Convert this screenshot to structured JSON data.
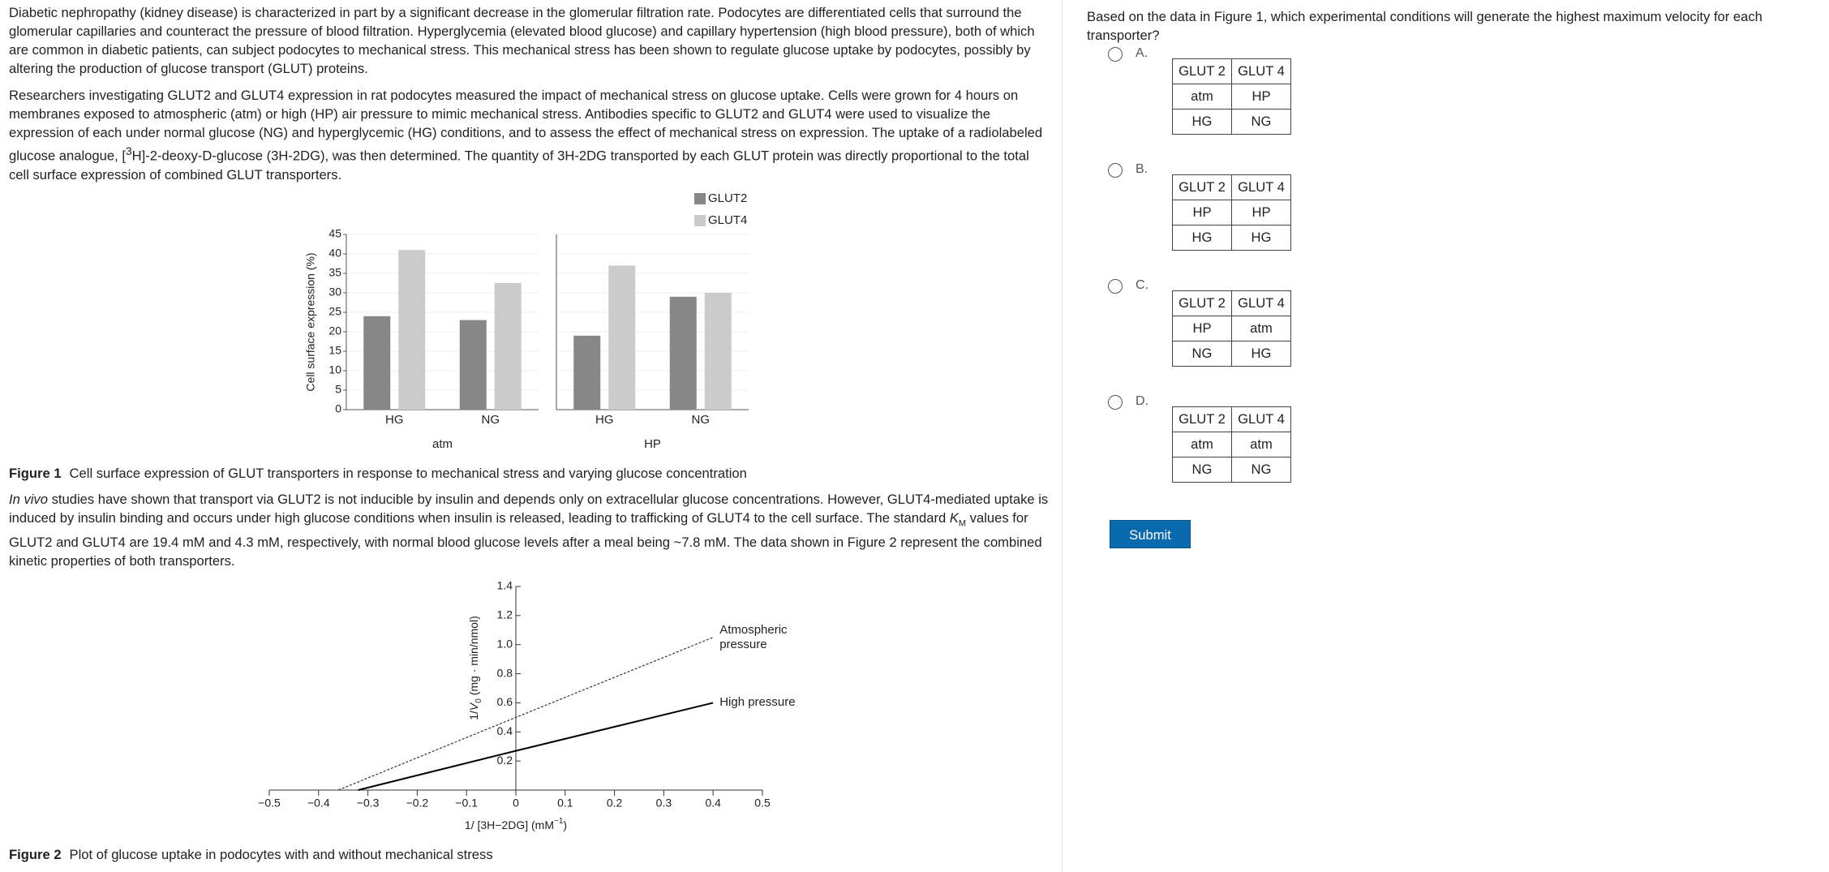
{
  "passage": {
    "paragraphs": [
      [
        "Diabetic nephropathy (kidney disease) is characterized in part by a significant decrease in the glomerular filtration rate.  Podocytes are differentiated cells that surround the glomerular capillaries and counteract the pressure of blood filtration.  Hyperglycemia (elevated blood glucose) and capillary hypertension (high blood pressure), both of which are common in diabetic patients, can subject podocytes to mechanical stress.  This mechanical stress has been shown to regulate glucose uptake by podocytes, possibly by altering the production of glucose transport (GLUT) proteins."
      ],
      [
        "Researchers investigating GLUT2 and GLUT4 expression in rat podocytes measured the impact of mechanical stress on glucose uptake.  Cells were grown for 4 hours on membranes exposed to atmospheric (atm) or high (HP) air pressure to mimic mechanical stress.  Antibodies specific to GLUT2 and GLUT4 were used to visualize the expression of each under normal glucose (NG) and hyperglycemic (HG) conditions, and to assess the effect of mechanical stress on expression.  The uptake of a radiolabeled glucose analogue, [",
        "3",
        "H]-2-deoxy-D-glucose (3H-2DG), was then determined.  The quantity of 3H-2DG transported by each GLUT protein was directly proportional to the total cell surface expression of combined GLUT transporters."
      ],
      [
        "In vivo",
        " studies have shown that transport via GLUT2 is not inducible by insulin and depends only on extracellular glucose concentrations.  However, GLUT4-mediated uptake is induced by insulin binding and occurs under high glucose conditions when insulin is released, leading to trafficking of GLUT4 to the cell surface.  The standard ",
        "K",
        "M",
        " values for GLUT2 and GLUT4 are 19.4 mM and 4.3 mM, respectively, with normal blood glucose levels after a meal being ~7.8 mM.  The data shown in Figure 2 represent the combined kinetic properties of both transporters."
      ]
    ]
  },
  "chart_data": [
    {
      "type": "bar",
      "categories": [
        "HG",
        "NG",
        "HG",
        "NG"
      ],
      "groups": [
        "atm",
        "HP"
      ],
      "series": [
        {
          "name": "GLUT2",
          "color": "#878787",
          "values": [
            24,
            23,
            19,
            29
          ]
        },
        {
          "name": "GLUT4",
          "color": "#cbcbcb",
          "values": [
            41,
            32.5,
            37,
            30
          ]
        }
      ],
      "ylim": [
        0,
        45
      ],
      "yticks": [
        0,
        5,
        10,
        15,
        20,
        25,
        30,
        35,
        40,
        45
      ],
      "y_label": "Cell surface expression (%)",
      "grid": true,
      "caption": {
        "label": "Figure 1",
        "text": "Cell surface expression of GLUT transporters in response to mechanical stress and varying glucose concentration"
      }
    },
    {
      "type": "line",
      "series": [
        {
          "name": "Atmospheric pressure",
          "color": "#333333",
          "dashed": true,
          "x": [
            -0.36,
            0,
            0.4
          ],
          "values": [
            0,
            0.5,
            1.05
          ]
        },
        {
          "name": "High pressure",
          "color": "#000000",
          "dashed": false,
          "x": [
            -0.32,
            0,
            0.4
          ],
          "values": [
            0,
            0.27,
            0.6
          ]
        }
      ],
      "xlim": [
        -0.5,
        0.5
      ],
      "xticks": [
        {
          "value": -0.5,
          "label": "−0.5"
        },
        {
          "value": -0.4,
          "label": "−0.4"
        },
        {
          "value": -0.3,
          "label": "−0.3"
        },
        {
          "value": -0.2,
          "label": "−0.2"
        },
        {
          "value": -0.1,
          "label": "−0.1"
        },
        0,
        0.1,
        0.2,
        0.3,
        0.4,
        0.5
      ],
      "ylim": [
        0,
        1.4
      ],
      "yticks": [
        0.2,
        0.4,
        0.6,
        0.8,
        {
          "value": 1,
          "label": "1.0"
        },
        1.2,
        1.4
      ],
      "x_label": [
        "1/ [3H−2DG] (mM",
        "−1",
        ")"
      ],
      "y_label": [
        "1/",
        "V",
        "0",
        " (mg · min/nmol)"
      ],
      "caption": {
        "label": "Figure 2",
        "text": "Plot of glucose uptake in podocytes with and without mechanical stress"
      }
    }
  ],
  "question": {
    "text": "Based on the data in Figure 1, which experimental conditions will generate the highest maximum velocity for each transporter?",
    "options": [
      {
        "label": "A.",
        "header": [
          "GLUT 2",
          "GLUT 4"
        ],
        "rows": [
          [
            "atm",
            "HP"
          ],
          [
            "HG",
            "NG"
          ]
        ]
      },
      {
        "label": "B.",
        "header": [
          "GLUT 2",
          "GLUT 4"
        ],
        "rows": [
          [
            "HP",
            "HP"
          ],
          [
            "HG",
            "HG"
          ]
        ]
      },
      {
        "label": "C.",
        "header": [
          "GLUT 2",
          "GLUT 4"
        ],
        "rows": [
          [
            "HP",
            "atm"
          ],
          [
            "NG",
            "HG"
          ]
        ]
      },
      {
        "label": "D.",
        "header": [
          "GLUT 2",
          "GLUT 4"
        ],
        "rows": [
          [
            "atm",
            "atm"
          ],
          [
            "NG",
            "NG"
          ]
        ]
      }
    ],
    "submit": "Submit"
  }
}
